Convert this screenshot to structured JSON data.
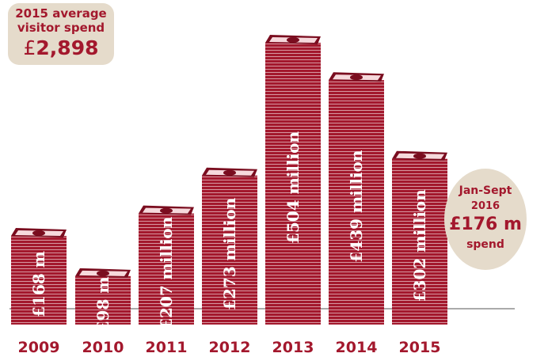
{
  "chart_data": {
    "type": "bar",
    "categories": [
      "2009",
      "2010",
      "2011",
      "2012",
      "2013",
      "2014",
      "2015"
    ],
    "values": [
      168,
      98,
      207,
      273,
      504,
      439,
      302
    ],
    "value_labels": [
      "£168 m",
      "£98 m",
      "£207 million",
      "£273 million",
      "£504 million",
      "£439 million",
      "£302 million"
    ],
    "title": "",
    "xlabel": "",
    "ylabel": "",
    "grid": false,
    "bar_style": "stacked-banknotes"
  },
  "average_box": {
    "line1": "2015 average",
    "line2": "visitor spend",
    "currency": "£",
    "amount": "2,898"
  },
  "jan_sept_box": {
    "line1": "Jan-Sept",
    "line2": "2016",
    "amount": "£176 m",
    "line4": "spend"
  },
  "colors": {
    "bar": "#a3182d",
    "note_dark": "#7a0d1f",
    "note_light": "#f6d9dc",
    "axis_text": "#a3182d",
    "box_fill": "#e5dbcb",
    "baseline": "#555555"
  }
}
